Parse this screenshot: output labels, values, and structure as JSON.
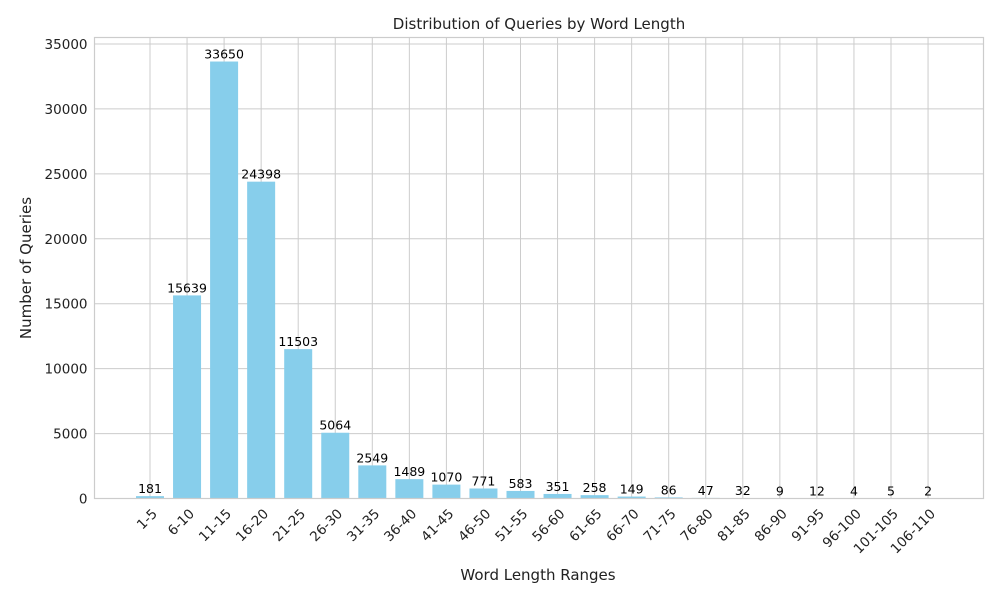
{
  "chart_data": {
    "type": "bar",
    "title": "Distribution of Queries by Word Length",
    "xlabel": "Word Length Ranges",
    "ylabel": "Number of Queries",
    "ylim": [
      0,
      35500
    ],
    "yticks": [
      0,
      5000,
      10000,
      15000,
      20000,
      25000,
      30000,
      35000
    ],
    "grid": true,
    "bar_color": "#87ceeb",
    "categories": [
      "1-5",
      "6-10",
      "11-15",
      "16-20",
      "21-25",
      "26-30",
      "31-35",
      "36-40",
      "41-45",
      "46-50",
      "51-55",
      "56-60",
      "61-65",
      "66-70",
      "71-75",
      "76-80",
      "81-85",
      "86-90",
      "91-95",
      "96-100",
      "101-105",
      "106-110"
    ],
    "values": [
      181,
      15639,
      33650,
      24398,
      11503,
      5064,
      2549,
      1489,
      1070,
      771,
      583,
      351,
      258,
      149,
      86,
      47,
      32,
      9,
      12,
      4,
      5,
      2
    ]
  }
}
